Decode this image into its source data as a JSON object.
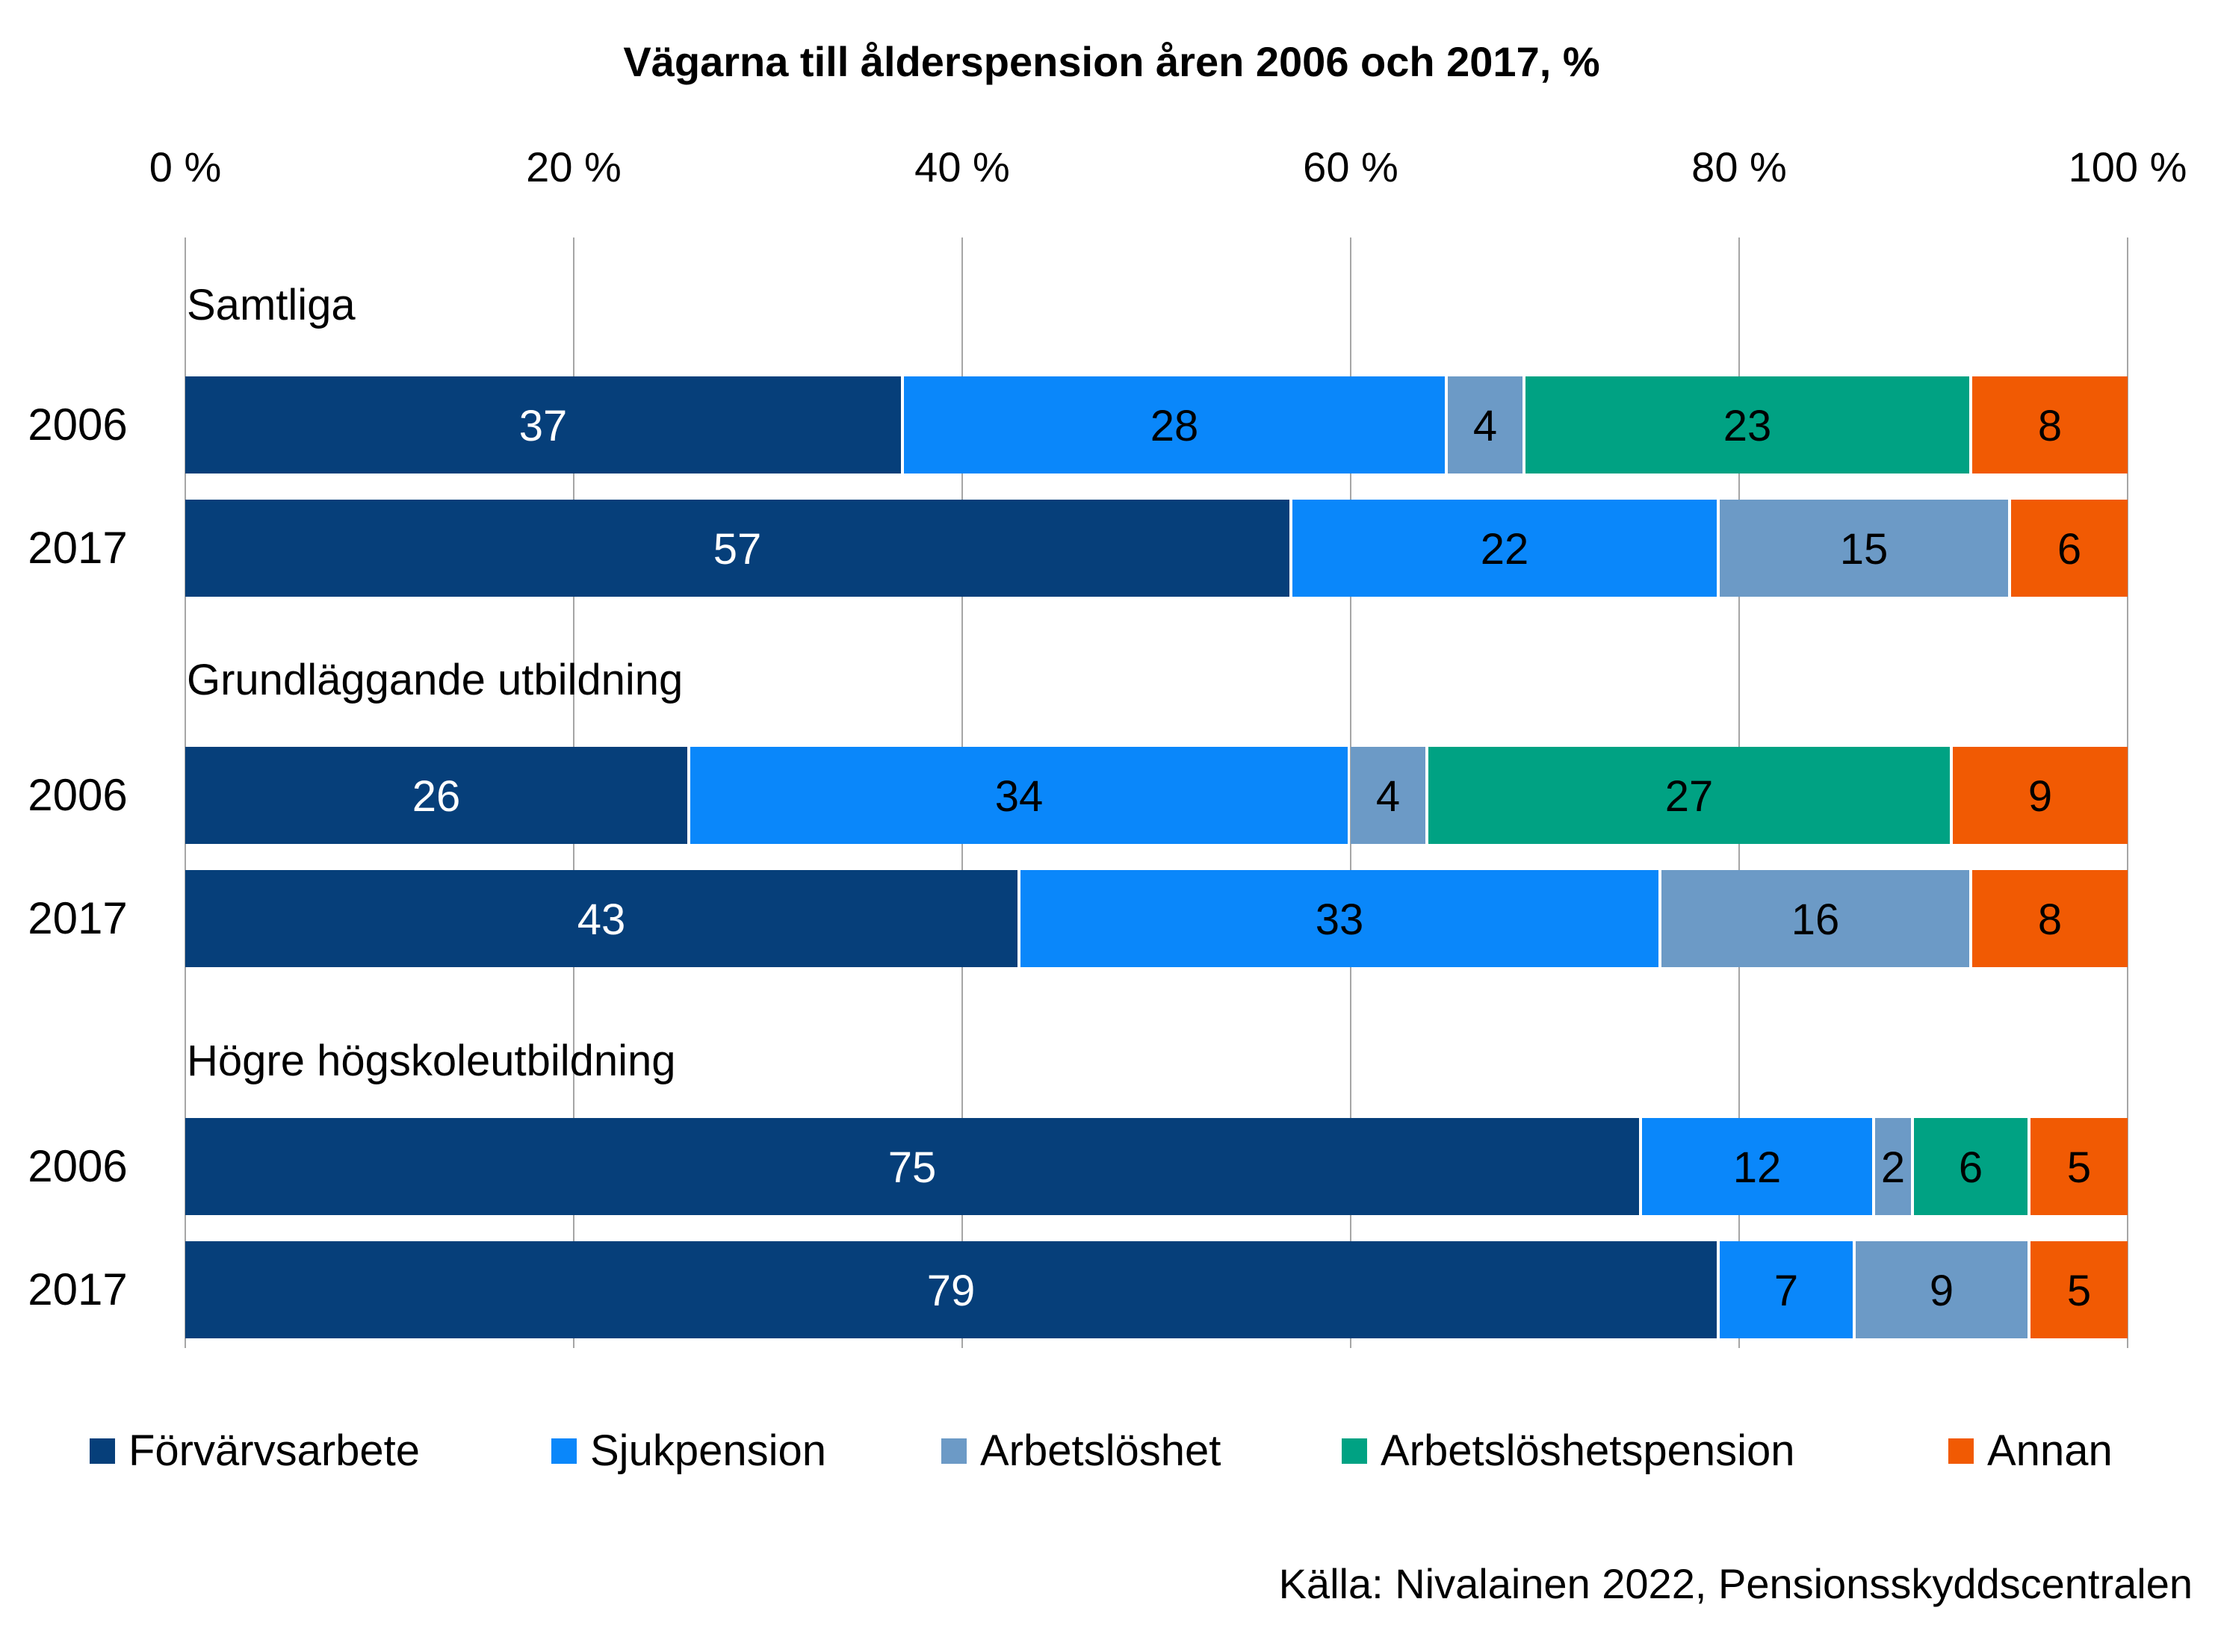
{
  "chart_data": {
    "type": "bar",
    "orientation": "horizontal",
    "stacked": true,
    "title": "Vägarna till ålderspension åren 2006 och 2017, %",
    "x_ticks": [
      "0 %",
      "20 %",
      "40 %",
      "60 %",
      "80 %",
      "100 %"
    ],
    "xlim": [
      0,
      100
    ],
    "grid": true,
    "legend_position": "bottom",
    "series": [
      {
        "name": "Förvärvsarbete",
        "color": "#063f7a"
      },
      {
        "name": "Sjukpension",
        "color": "#0a87fa"
      },
      {
        "name": "Arbetslöshet",
        "color": "#6c9ac6"
      },
      {
        "name": "Arbetslöshetspension",
        "color": "#00a283"
      },
      {
        "name": "Annan",
        "color": "#f15a03"
      }
    ],
    "groups": [
      {
        "label": "Samtliga",
        "rows": [
          {
            "year": "2006",
            "values": [
              37,
              28,
              4,
              23,
              8
            ]
          },
          {
            "year": "2017",
            "values": [
              57,
              22,
              15,
              0,
              6
            ]
          }
        ]
      },
      {
        "label": "Grundläggande utbildning",
        "rows": [
          {
            "year": "2006",
            "values": [
              26,
              34,
              4,
              27,
              9
            ]
          },
          {
            "year": "2017",
            "values": [
              43,
              33,
              16,
              0,
              8
            ]
          }
        ]
      },
      {
        "label": "Högre högskoleutbildning",
        "rows": [
          {
            "year": "2006",
            "values": [
              75,
              12,
              2,
              6,
              5
            ]
          },
          {
            "year": "2017",
            "values": [
              79,
              7,
              9,
              0,
              5
            ]
          }
        ]
      }
    ],
    "source": "Källa: Nivalainen 2022, Pensionsskyddscentralen"
  }
}
